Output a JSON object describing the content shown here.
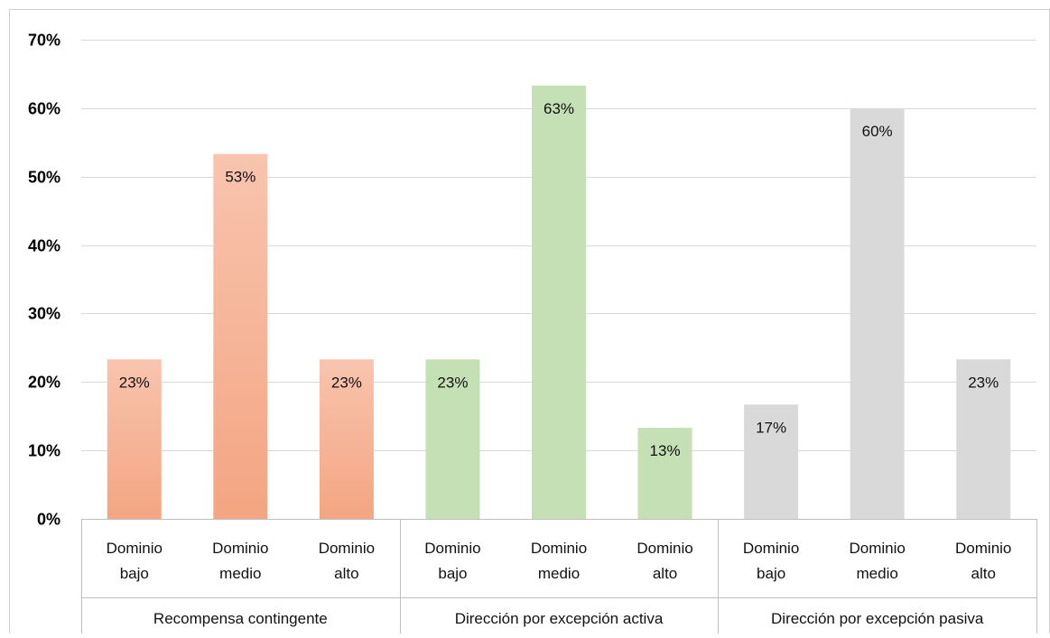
{
  "chart_data": {
    "type": "bar",
    "title": "",
    "xlabel": "",
    "ylabel": "",
    "ylim": [
      0,
      70
    ],
    "y_ticks": [
      "0%",
      "10%",
      "20%",
      "30%",
      "40%",
      "50%",
      "60%",
      "70%"
    ],
    "y_tick_values": [
      0,
      10,
      20,
      30,
      40,
      50,
      60,
      70
    ],
    "grid": true,
    "legend": "none",
    "groups": [
      {
        "label": "Recompensa contingente",
        "color": "#F4A582",
        "categories": [
          {
            "line1": "Dominio",
            "line2": "bajo",
            "value": 23.3,
            "label": "23%"
          },
          {
            "line1": "Dominio",
            "line2": "medio",
            "value": 53.3,
            "label": "53%"
          },
          {
            "line1": "Dominio",
            "line2": "alto",
            "value": 23.3,
            "label": "23%"
          }
        ]
      },
      {
        "label": "Dirección por excepción activa",
        "color": "#C5E0B4",
        "categories": [
          {
            "line1": "Dominio",
            "line2": "bajo",
            "value": 23.3,
            "label": "23%"
          },
          {
            "line1": "Dominio",
            "line2": "medio",
            "value": 63.3,
            "label": "63%"
          },
          {
            "line1": "Dominio",
            "line2": "alto",
            "value": 13.3,
            "label": "13%"
          }
        ]
      },
      {
        "label": "Dirección por excepción pasiva",
        "color": "#D9D9D9",
        "categories": [
          {
            "line1": "Dominio",
            "line2": "bajo",
            "value": 16.7,
            "label": "17%"
          },
          {
            "line1": "Dominio",
            "line2": "medio",
            "value": 60.0,
            "label": "60%"
          },
          {
            "line1": "Dominio",
            "line2": "alto",
            "value": 23.3,
            "label": "23%"
          }
        ]
      }
    ]
  }
}
